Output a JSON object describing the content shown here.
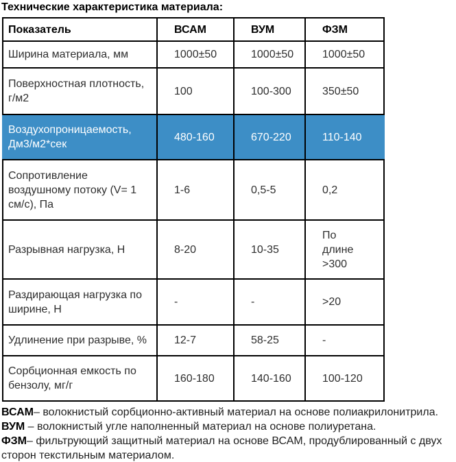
{
  "title": "Технические характеристика материала:",
  "table": {
    "columns": [
      "Показатель",
      "ВСАМ",
      "ВУМ",
      "ФЗМ"
    ],
    "highlight_color": "#3d8ec6",
    "highlight_text_color": "#ffffff",
    "rows": [
      {
        "label": "Ширина материала, мм",
        "values": [
          "1000±50",
          "1000±50",
          "1000±50"
        ],
        "highlight": false
      },
      {
        "label": "Поверхностная плотность, г/м2",
        "values": [
          "100",
          "100-300",
          "350±50"
        ],
        "highlight": false
      },
      {
        "label": "Воздухопроницаемость, Дм3/м2*сек",
        "values": [
          "480-160",
          "670-220",
          "110-140"
        ],
        "highlight": true
      },
      {
        "label": "Сопротивление воздушному потоку (V= 1 см/с), Па",
        "values": [
          "1-6",
          "0,5-5",
          "0,2"
        ],
        "highlight": false
      },
      {
        "label": "Разрывная нагрузка, Н",
        "values": [
          "8-20",
          "10-35",
          "По\nдлине\n>300"
        ],
        "highlight": false
      },
      {
        "label": "Раздирающая нагрузка по ширине, Н",
        "values": [
          "-",
          "-",
          ">20"
        ],
        "highlight": false
      },
      {
        "label": "Удлинение при разрыве, %",
        "values": [
          "12-7",
          "58-25",
          "-"
        ],
        "highlight": false
      },
      {
        "label": "Сорбционная емкость по бензолу, мг/г",
        "values": [
          "160-180",
          "140-160",
          "100-120"
        ],
        "highlight": false
      }
    ]
  },
  "footnotes": [
    {
      "term": "ВСАМ",
      "text": "– волокнистый сорбционно-активный материал на основе полиакрилонитрила."
    },
    {
      "term": "ВУМ",
      "text": " – волокнистый угле наполненный материал на основе полиуретана."
    },
    {
      "term": "ФЗМ",
      "text": "– фильтрующий защитный материал на основе ВСАМ, продублированный с двух сторон текстильным материалом."
    }
  ]
}
